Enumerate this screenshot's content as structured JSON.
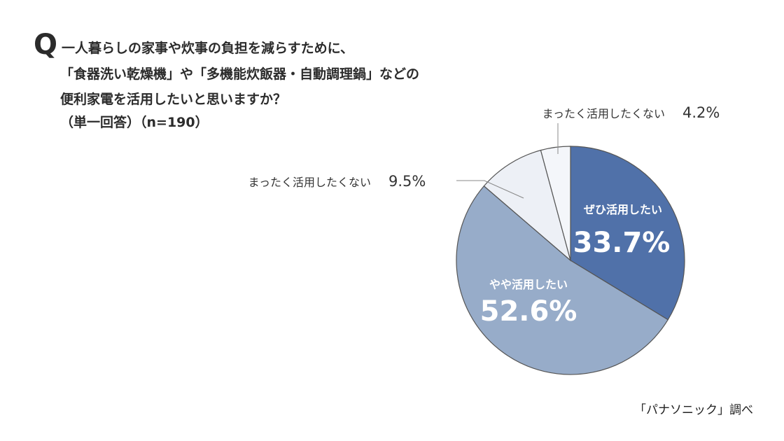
{
  "question": {
    "mark": "Q",
    "lines": [
      "一人暮らしの家事や炊事の負担を減らすために、",
      "「食器洗い乾燥機」や「多機能炊飯器・自動調理鍋」などの",
      "便利家電を活用したいと思いますか？",
      "（単一回答）（n=190）"
    ]
  },
  "chart_data": {
    "type": "pie",
    "title": "",
    "slices": [
      {
        "label": "ぜひ活用したい",
        "value": 33.7,
        "value_label": "33.7%",
        "color": "#5071a9"
      },
      {
        "label": "やや活用したい",
        "value": 52.6,
        "value_label": "52.6%",
        "color": "#97acc9"
      },
      {
        "label": "まったく活用したくない",
        "value": 9.5,
        "value_label": "9.5%",
        "color": "#edf0f6"
      },
      {
        "label": "まったく活用したくない",
        "value": 4.2,
        "value_label": "4.2%",
        "color": "#f4f6fa"
      }
    ],
    "stroke_color": "#555555",
    "inside_text_color": "#ffffff",
    "outside_text_color": "#333333"
  },
  "source": "「パナソニック」調べ"
}
